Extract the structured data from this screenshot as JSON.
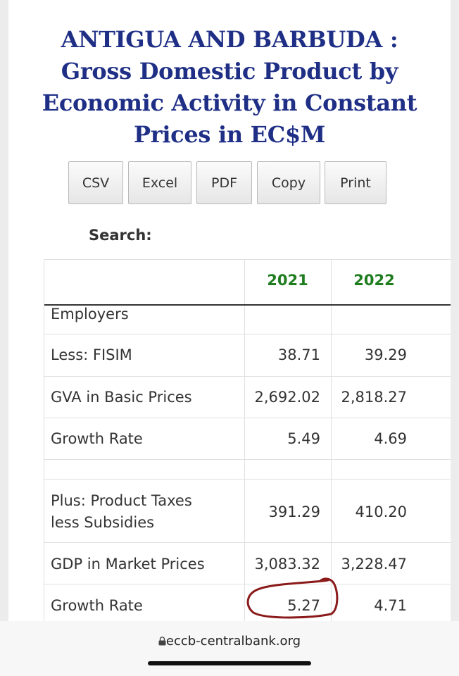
{
  "title_lines": [
    "ANTIGUA AND BARBUDA :",
    "Gross Domestic Product by",
    "Economic Activity in Constant",
    "Prices in EC$M"
  ],
  "toolbar": {
    "csv": "CSV",
    "excel": "Excel",
    "pdf": "PDF",
    "copy": "Copy",
    "print": "Print"
  },
  "search": {
    "label": "Search:"
  },
  "table": {
    "headers": [
      "",
      "2021",
      "2022"
    ],
    "rows": [
      {
        "label": "Employers",
        "v2021": "",
        "v2022": ""
      },
      {
        "label": "Less: FISIM",
        "v2021": "38.71",
        "v2022": "39.29"
      },
      {
        "label": "GVA in Basic Prices",
        "v2021": "2,692.02",
        "v2022": "2,818.27"
      },
      {
        "label": "Growth Rate",
        "v2021": "5.49",
        "v2022": "4.69"
      },
      {
        "label": "",
        "v2021": "",
        "v2022": ""
      },
      {
        "label_lines": [
          "Plus: Product Taxes",
          "less Subsidies"
        ],
        "v2021": "391.29",
        "v2022": "410.20"
      },
      {
        "label": "GDP in Market Prices",
        "v2021": "3,083.32",
        "v2022": "3,228.47"
      },
      {
        "label": "Growth Rate",
        "v2021": "5.27",
        "v2022": "4.71"
      }
    ]
  },
  "colors": {
    "title": "#1f2f86",
    "year_header": "#1f7d1f",
    "annotation": "#8b1a1a"
  },
  "annotation": {
    "target": "Growth Rate 2021 value 5.27",
    "shape": "hand-drawn circle"
  },
  "browser": {
    "url": "eccb-centralbank.org",
    "lock_icon": "lock-icon"
  }
}
